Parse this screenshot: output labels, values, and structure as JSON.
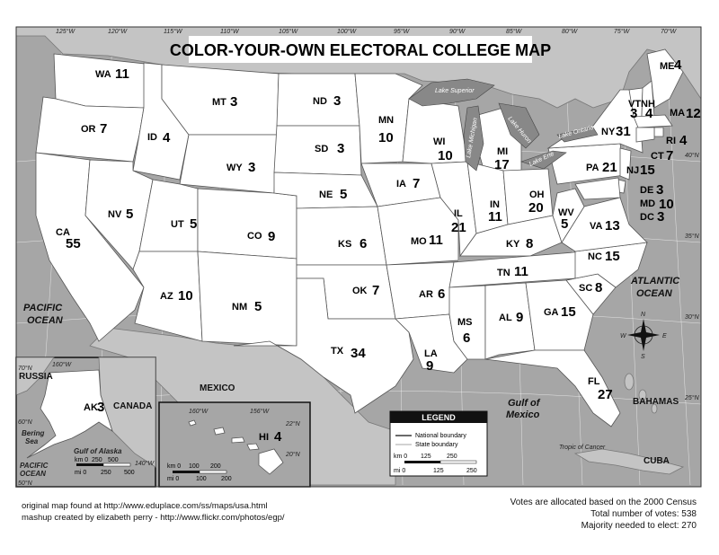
{
  "title": "COLOR-YOUR-OWN ELECTORAL COLLEGE MAP",
  "states": [
    {
      "abbr": "WA",
      "votes": "11"
    },
    {
      "abbr": "OR",
      "votes": "7"
    },
    {
      "abbr": "CA",
      "votes": "55"
    },
    {
      "abbr": "ID",
      "votes": "4"
    },
    {
      "abbr": "NV",
      "votes": "5"
    },
    {
      "abbr": "MT",
      "votes": "3"
    },
    {
      "abbr": "WY",
      "votes": "3"
    },
    {
      "abbr": "UT",
      "votes": "5"
    },
    {
      "abbr": "AZ",
      "votes": "10"
    },
    {
      "abbr": "CO",
      "votes": "9"
    },
    {
      "abbr": "NM",
      "votes": "5"
    },
    {
      "abbr": "ND",
      "votes": "3"
    },
    {
      "abbr": "SD",
      "votes": "3"
    },
    {
      "abbr": "NE",
      "votes": "5"
    },
    {
      "abbr": "KS",
      "votes": "6"
    },
    {
      "abbr": "OK",
      "votes": "7"
    },
    {
      "abbr": "TX",
      "votes": "34"
    },
    {
      "abbr": "MN",
      "votes": "10"
    },
    {
      "abbr": "IA",
      "votes": "7"
    },
    {
      "abbr": "MO",
      "votes": "11"
    },
    {
      "abbr": "AR",
      "votes": "6"
    },
    {
      "abbr": "LA",
      "votes": "9"
    },
    {
      "abbr": "WI",
      "votes": "10"
    },
    {
      "abbr": "IL",
      "votes": "21"
    },
    {
      "abbr": "MI",
      "votes": "17"
    },
    {
      "abbr": "IN",
      "votes": "11"
    },
    {
      "abbr": "OH",
      "votes": "20"
    },
    {
      "abbr": "KY",
      "votes": "8"
    },
    {
      "abbr": "TN",
      "votes": "11"
    },
    {
      "abbr": "MS",
      "votes": "6"
    },
    {
      "abbr": "AL",
      "votes": "9"
    },
    {
      "abbr": "GA",
      "votes": "15"
    },
    {
      "abbr": "FL",
      "votes": "27"
    },
    {
      "abbr": "SC",
      "votes": "8"
    },
    {
      "abbr": "NC",
      "votes": "15"
    },
    {
      "abbr": "VA",
      "votes": "13"
    },
    {
      "abbr": "WV",
      "votes": "5"
    },
    {
      "abbr": "PA",
      "votes": "21"
    },
    {
      "abbr": "NY",
      "votes": "31"
    },
    {
      "abbr": "VT",
      "votes": "3"
    },
    {
      "abbr": "NH",
      "votes": "4"
    },
    {
      "abbr": "ME",
      "votes": "4"
    },
    {
      "abbr": "MA",
      "votes": "12"
    },
    {
      "abbr": "RI",
      "votes": "4"
    },
    {
      "abbr": "CT",
      "votes": "7"
    },
    {
      "abbr": "NJ",
      "votes": "15"
    },
    {
      "abbr": "DE",
      "votes": "3"
    },
    {
      "abbr": "MD",
      "votes": "10"
    },
    {
      "abbr": "DC",
      "votes": "3"
    },
    {
      "abbr": "AK",
      "votes": "3"
    },
    {
      "abbr": "HI",
      "votes": "4"
    }
  ],
  "labels": {
    "pacific": "PACIFIC",
    "pacific_ocean": "OCEAN",
    "atlantic": "ATLANTIC",
    "atlantic_ocean": "OCEAN",
    "gulf_mexico_1": "Gulf of",
    "gulf_mexico_2": "Mexico",
    "mexico": "MEXICO",
    "bahamas": "BAHAMAS",
    "cuba": "CUBA",
    "russia": "RUSSIA",
    "canada": "CANADA",
    "bering_1": "Bering",
    "bering_2": "Sea",
    "gulf_alaska": "Gulf of Alaska",
    "pacific_ak_1": "PACIFIC",
    "pacific_ak_2": "OCEAN",
    "tropic": "Tropic of Cancer",
    "lake_superior": "Lake Superior",
    "lake_michigan": "Lake Michigan",
    "lake_huron": "Lake Huron",
    "lake_erie": "Lake Erie",
    "lake_ontario": "Lake Ontario"
  },
  "longitudes": [
    "125°W",
    "120°W",
    "115°W",
    "110°W",
    "105°W",
    "100°W",
    "95°W",
    "90°W",
    "85°W",
    "80°W",
    "75°W",
    "70°W"
  ],
  "latitudes": [
    "40°N",
    "35°N",
    "30°N",
    "25°N"
  ],
  "compass": {
    "n": "N",
    "s": "S",
    "e": "E",
    "w": "W"
  },
  "alaska_inset": {
    "lat1": "70°N",
    "lat2": "60°N",
    "lat3": "50°N",
    "lon1": "160°W",
    "lon2": "140°W",
    "scale_km": [
      "km 0",
      "250",
      "500"
    ],
    "scale_mi": [
      "mi 0",
      "250",
      "500"
    ]
  },
  "hawaii_inset": {
    "lon1": "160°W",
    "lon2": "156°W",
    "lat1": "22°N",
    "lat2": "20°N",
    "scale_km": [
      "km 0",
      "100",
      "200"
    ],
    "scale_mi": [
      "mi 0",
      "100",
      "200"
    ]
  },
  "legend": {
    "heading": "LEGEND",
    "national": "National boundary",
    "state": "State boundary",
    "scale_km": [
      "km 0",
      "125",
      "250"
    ],
    "scale_mi": [
      "mi 0",
      "125",
      "250"
    ]
  },
  "footer": {
    "left_1": "original map found at http://www.eduplace.com/ss/maps/usa.html",
    "left_2": "mashup created by elizabeth perry - http://www.flickr.com/photos/egp/",
    "right_1": "Votes are allocated based on the 2000 Census",
    "right_2": "Total number of votes: 538",
    "right_3": "Majority needed to elect: 270"
  }
}
